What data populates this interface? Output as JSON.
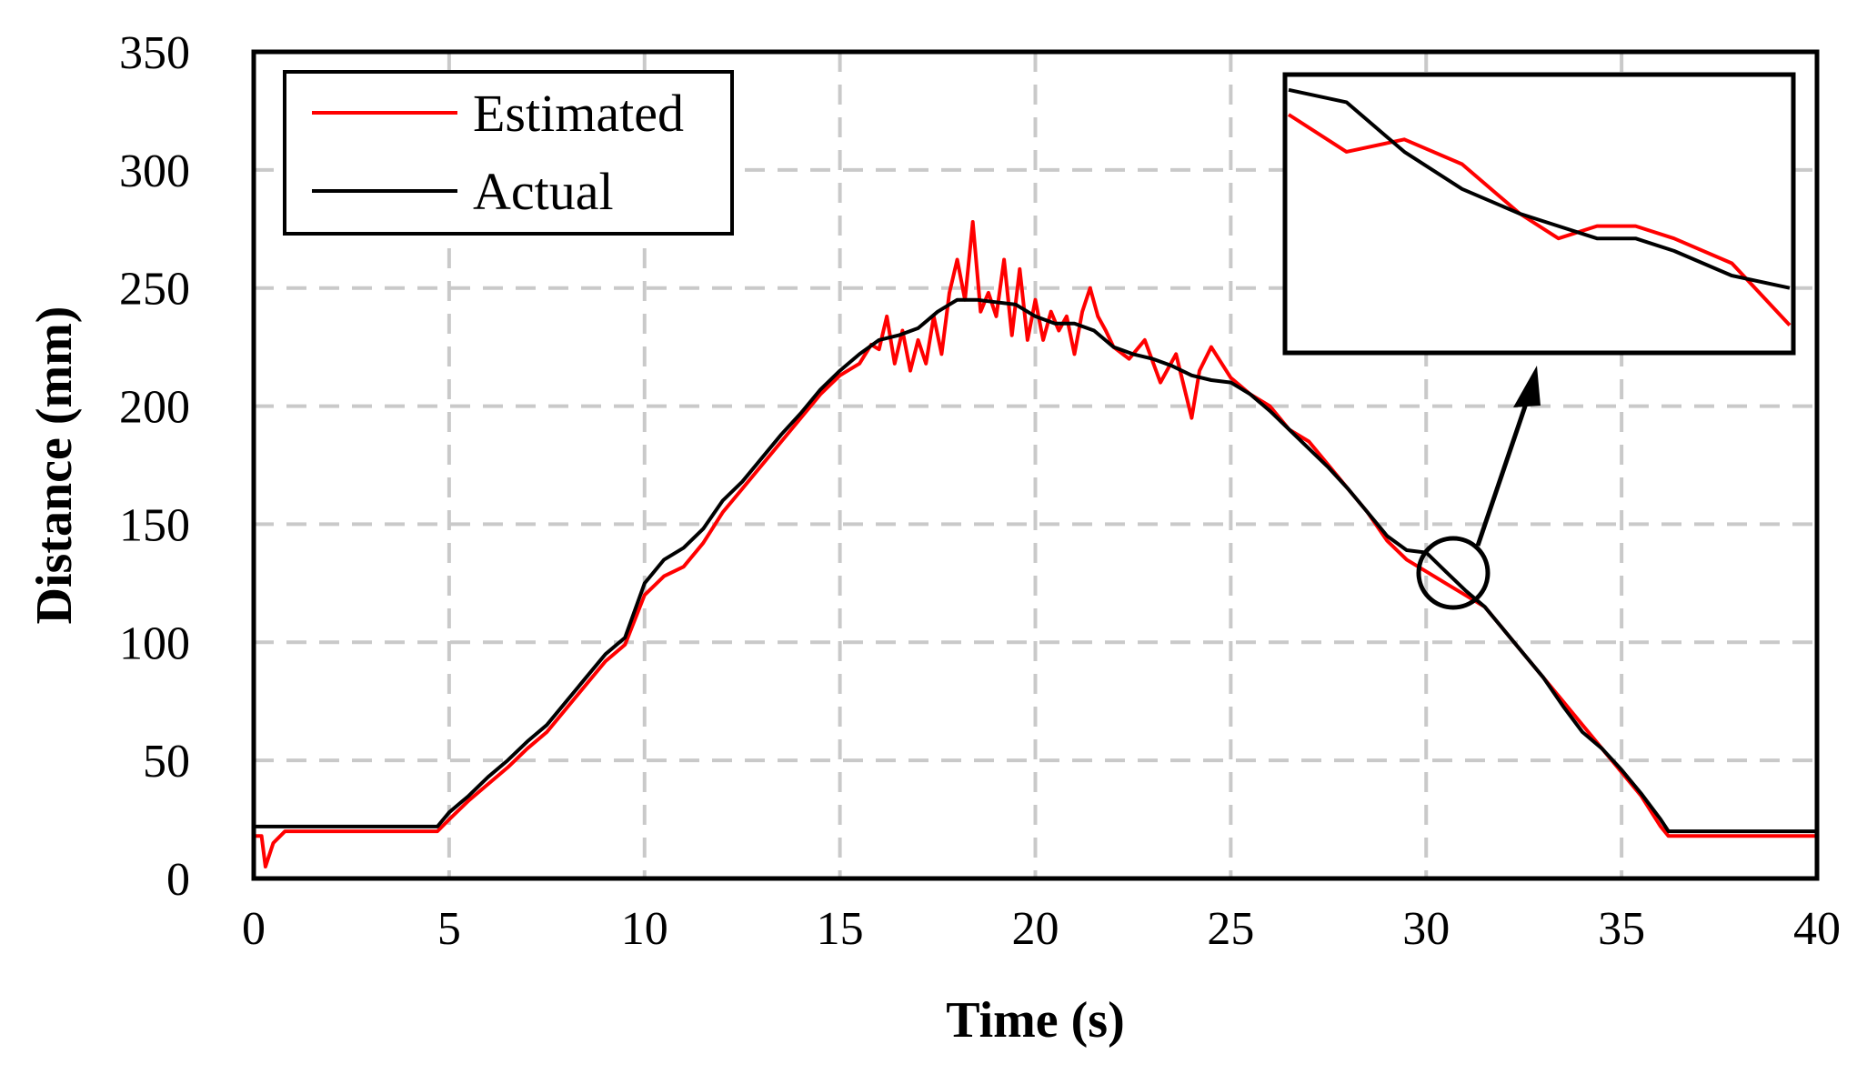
{
  "chart_data": {
    "type": "line",
    "title": "",
    "xlabel": "Time (s)",
    "ylabel": "Distance (mm)",
    "xlim": [
      0,
      40
    ],
    "ylim": [
      0,
      350
    ],
    "xticks": [
      0,
      5,
      10,
      15,
      20,
      25,
      30,
      35,
      40
    ],
    "yticks": [
      0,
      50,
      100,
      150,
      200,
      250,
      300,
      350
    ],
    "grid": true,
    "legend_position": "top-left",
    "colors": {
      "estimated": "#ff0000",
      "actual": "#000000"
    },
    "series": [
      {
        "name": "Estimated",
        "color": "#ff0000",
        "points": [
          [
            0,
            18
          ],
          [
            0.2,
            18
          ],
          [
            0.3,
            5
          ],
          [
            0.5,
            15
          ],
          [
            0.8,
            20
          ],
          [
            2,
            20
          ],
          [
            3.5,
            20
          ],
          [
            4.7,
            20
          ],
          [
            5,
            25
          ],
          [
            5.5,
            33
          ],
          [
            6,
            40
          ],
          [
            6.5,
            47
          ],
          [
            7,
            55
          ],
          [
            7.5,
            62
          ],
          [
            8,
            72
          ],
          [
            8.5,
            82
          ],
          [
            9,
            92
          ],
          [
            9.5,
            99
          ],
          [
            10,
            120
          ],
          [
            10.5,
            128
          ],
          [
            11,
            132
          ],
          [
            11.5,
            142
          ],
          [
            12,
            155
          ],
          [
            12.5,
            165
          ],
          [
            13,
            175
          ],
          [
            13.5,
            185
          ],
          [
            14,
            195
          ],
          [
            14.5,
            205
          ],
          [
            15,
            213
          ],
          [
            15.5,
            218
          ],
          [
            15.8,
            226
          ],
          [
            16,
            224
          ],
          [
            16.2,
            238
          ],
          [
            16.4,
            218
          ],
          [
            16.6,
            232
          ],
          [
            16.8,
            215
          ],
          [
            17,
            228
          ],
          [
            17.2,
            218
          ],
          [
            17.4,
            238
          ],
          [
            17.6,
            222
          ],
          [
            17.8,
            248
          ],
          [
            18,
            262
          ],
          [
            18.2,
            245
          ],
          [
            18.4,
            278
          ],
          [
            18.6,
            240
          ],
          [
            18.8,
            248
          ],
          [
            19,
            238
          ],
          [
            19.2,
            262
          ],
          [
            19.4,
            230
          ],
          [
            19.6,
            258
          ],
          [
            19.8,
            228
          ],
          [
            20,
            245
          ],
          [
            20.2,
            228
          ],
          [
            20.4,
            240
          ],
          [
            20.6,
            232
          ],
          [
            20.8,
            238
          ],
          [
            21,
            222
          ],
          [
            21.2,
            240
          ],
          [
            21.4,
            250
          ],
          [
            21.6,
            238
          ],
          [
            21.8,
            232
          ],
          [
            22,
            225
          ],
          [
            22.4,
            220
          ],
          [
            22.8,
            228
          ],
          [
            23.2,
            210
          ],
          [
            23.6,
            222
          ],
          [
            24,
            195
          ],
          [
            24.2,
            215
          ],
          [
            24.5,
            225
          ],
          [
            25,
            212
          ],
          [
            25.5,
            205
          ],
          [
            26,
            200
          ],
          [
            26.5,
            190
          ],
          [
            27,
            185
          ],
          [
            27.5,
            175
          ],
          [
            28,
            165
          ],
          [
            28.5,
            155
          ],
          [
            29,
            143
          ],
          [
            29.5,
            135
          ],
          [
            30,
            130
          ],
          [
            30.5,
            125
          ],
          [
            31,
            120
          ],
          [
            31.5,
            115
          ],
          [
            32,
            105
          ],
          [
            32.5,
            95
          ],
          [
            33,
            85
          ],
          [
            33.5,
            75
          ],
          [
            34,
            65
          ],
          [
            34.5,
            55
          ],
          [
            35,
            45
          ],
          [
            35.5,
            35
          ],
          [
            36,
            22
          ],
          [
            36.2,
            18
          ],
          [
            38,
            18
          ],
          [
            40,
            18
          ]
        ]
      },
      {
        "name": "Actual",
        "color": "#000000",
        "points": [
          [
            0,
            22
          ],
          [
            2,
            22
          ],
          [
            4.7,
            22
          ],
          [
            5,
            28
          ],
          [
            5.5,
            35
          ],
          [
            6,
            43
          ],
          [
            6.5,
            50
          ],
          [
            7,
            58
          ],
          [
            7.5,
            65
          ],
          [
            8,
            75
          ],
          [
            8.5,
            85
          ],
          [
            9,
            95
          ],
          [
            9.5,
            102
          ],
          [
            10,
            125
          ],
          [
            10.5,
            135
          ],
          [
            11,
            140
          ],
          [
            11.5,
            148
          ],
          [
            12,
            160
          ],
          [
            12.5,
            168
          ],
          [
            13,
            178
          ],
          [
            13.5,
            188
          ],
          [
            14,
            197
          ],
          [
            14.5,
            207
          ],
          [
            15,
            215
          ],
          [
            15.5,
            222
          ],
          [
            16,
            228
          ],
          [
            16.5,
            230
          ],
          [
            17,
            233
          ],
          [
            17.5,
            240
          ],
          [
            18,
            245
          ],
          [
            18.5,
            245
          ],
          [
            19,
            244
          ],
          [
            19.5,
            243
          ],
          [
            20,
            238
          ],
          [
            20.5,
            235
          ],
          [
            21,
            235
          ],
          [
            21.5,
            232
          ],
          [
            22,
            225
          ],
          [
            22.5,
            222
          ],
          [
            23,
            220
          ],
          [
            23.5,
            217
          ],
          [
            24,
            213
          ],
          [
            24.5,
            211
          ],
          [
            25,
            210
          ],
          [
            25.5,
            205
          ],
          [
            26,
            198
          ],
          [
            26.5,
            190
          ],
          [
            27,
            182
          ],
          [
            27.5,
            174
          ],
          [
            28,
            165
          ],
          [
            28.5,
            155
          ],
          [
            29,
            145
          ],
          [
            29.5,
            139
          ],
          [
            30,
            138
          ],
          [
            30.5,
            130
          ],
          [
            31,
            122
          ],
          [
            31.5,
            115
          ],
          [
            32,
            105
          ],
          [
            32.5,
            95
          ],
          [
            33,
            85
          ],
          [
            33.5,
            73
          ],
          [
            34,
            62
          ],
          [
            34.5,
            55
          ],
          [
            35,
            46
          ],
          [
            35.5,
            36
          ],
          [
            36,
            25
          ],
          [
            36.2,
            20
          ],
          [
            38,
            20
          ],
          [
            40,
            20
          ]
        ]
      }
    ],
    "inset": {
      "description": "zoomed view near t = 31 s",
      "x_range": [
        30.2,
        31.5
      ],
      "estimated": [
        [
          30.2,
          132
        ],
        [
          30.35,
          129
        ],
        [
          30.5,
          130
        ],
        [
          30.65,
          128
        ],
        [
          30.8,
          124
        ],
        [
          30.9,
          122
        ],
        [
          31.0,
          123
        ],
        [
          31.1,
          123
        ],
        [
          31.2,
          122
        ],
        [
          31.35,
          120
        ],
        [
          31.5,
          115
        ]
      ],
      "actual": [
        [
          30.2,
          134
        ],
        [
          30.35,
          133
        ],
        [
          30.5,
          129
        ],
        [
          30.65,
          126
        ],
        [
          30.8,
          124
        ],
        [
          30.9,
          123
        ],
        [
          31.0,
          122
        ],
        [
          31.1,
          122
        ],
        [
          31.2,
          121
        ],
        [
          31.35,
          119
        ],
        [
          31.5,
          118
        ]
      ]
    }
  }
}
